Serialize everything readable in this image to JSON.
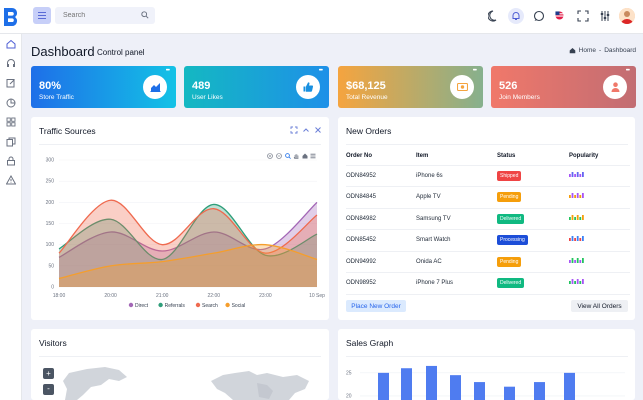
{
  "search": {
    "placeholder": "Search"
  },
  "page": {
    "title": "Dashboard",
    "subtitle": "Control panel"
  },
  "breadcrumb": {
    "home": "Home",
    "separator": "-",
    "current": "Dashboard"
  },
  "stats": [
    {
      "value": "80%",
      "label": "Store Traffic",
      "icon": "chart-icon",
      "gradient": [
        "#1e6fe8",
        "#13c2e6"
      ],
      "icon_color": "#1e6fe8"
    },
    {
      "value": "489",
      "label": "User Likes",
      "icon": "thumbs-up-icon",
      "gradient": [
        "#14b8c2",
        "#1e90e8"
      ],
      "icon_color": "#1890e0"
    },
    {
      "value": "$68,125",
      "label": "Total Revenue",
      "icon": "money-icon",
      "gradient": [
        "#f5a43f",
        "#86b08d"
      ],
      "icon_color": "#f5a43f"
    },
    {
      "value": "526",
      "label": "Join Members",
      "icon": "user-icon",
      "gradient": [
        "#f0786a",
        "#c26d73"
      ],
      "icon_color": "#f0786a"
    }
  ],
  "traffic": {
    "title": "Traffic Sources",
    "chart_data": {
      "type": "area",
      "x": [
        "18:00",
        "20:00",
        "21:00",
        "22:00",
        "23:00",
        "10 Sep"
      ],
      "ylim": [
        0,
        300
      ],
      "yticks": [
        0,
        50,
        100,
        150,
        200,
        250,
        300
      ],
      "series": [
        {
          "name": "Direct",
          "color": "#a367b6",
          "values": [
            70,
            130,
            85,
            130,
            90,
            200
          ]
        },
        {
          "name": "Referrals",
          "color": "#2f9e7a",
          "values": [
            90,
            160,
            65,
            195,
            75,
            125
          ]
        },
        {
          "name": "Search",
          "color": "#ef6a4f",
          "values": [
            80,
            205,
            100,
            185,
            80,
            170
          ]
        },
        {
          "name": "Social",
          "color": "#f59e2c",
          "values": [
            20,
            50,
            60,
            80,
            100,
            65
          ]
        }
      ]
    }
  },
  "orders": {
    "title": "New Orders",
    "columns": [
      "Order No",
      "Item",
      "Status",
      "Popularity"
    ],
    "rows": [
      {
        "id": "ODN84952",
        "item": "iPhone 6s",
        "status": "Shipped",
        "status_class": "st-shipped"
      },
      {
        "id": "ODN84845",
        "item": "Apple TV",
        "status": "Pending",
        "status_class": "st-pending"
      },
      {
        "id": "ODN84982",
        "item": "Samsung TV",
        "status": "Delivered",
        "status_class": "st-delivered"
      },
      {
        "id": "ODN85452",
        "item": "Smart Watch",
        "status": "Processing",
        "status_class": "st-processing"
      },
      {
        "id": "ODN94992",
        "item": "Onida AC",
        "status": "Pending",
        "status_class": "st-pending"
      },
      {
        "id": "ODN98952",
        "item": "iPhone 7 Plus",
        "status": "Delivered",
        "status_class": "st-delivered"
      }
    ],
    "place_button": "Place New Order",
    "view_button": "View All Orders"
  },
  "visitors": {
    "title": "Visitors",
    "zoom_in": "+",
    "zoom_out": "-"
  },
  "sales": {
    "title": "Sales Graph",
    "chart_data": {
      "type": "bar",
      "yticks": [
        20,
        25
      ],
      "values": [
        25,
        26,
        26.5,
        24.5,
        23,
        22,
        23,
        25
      ],
      "ylim": [
        15,
        28
      ]
    }
  }
}
